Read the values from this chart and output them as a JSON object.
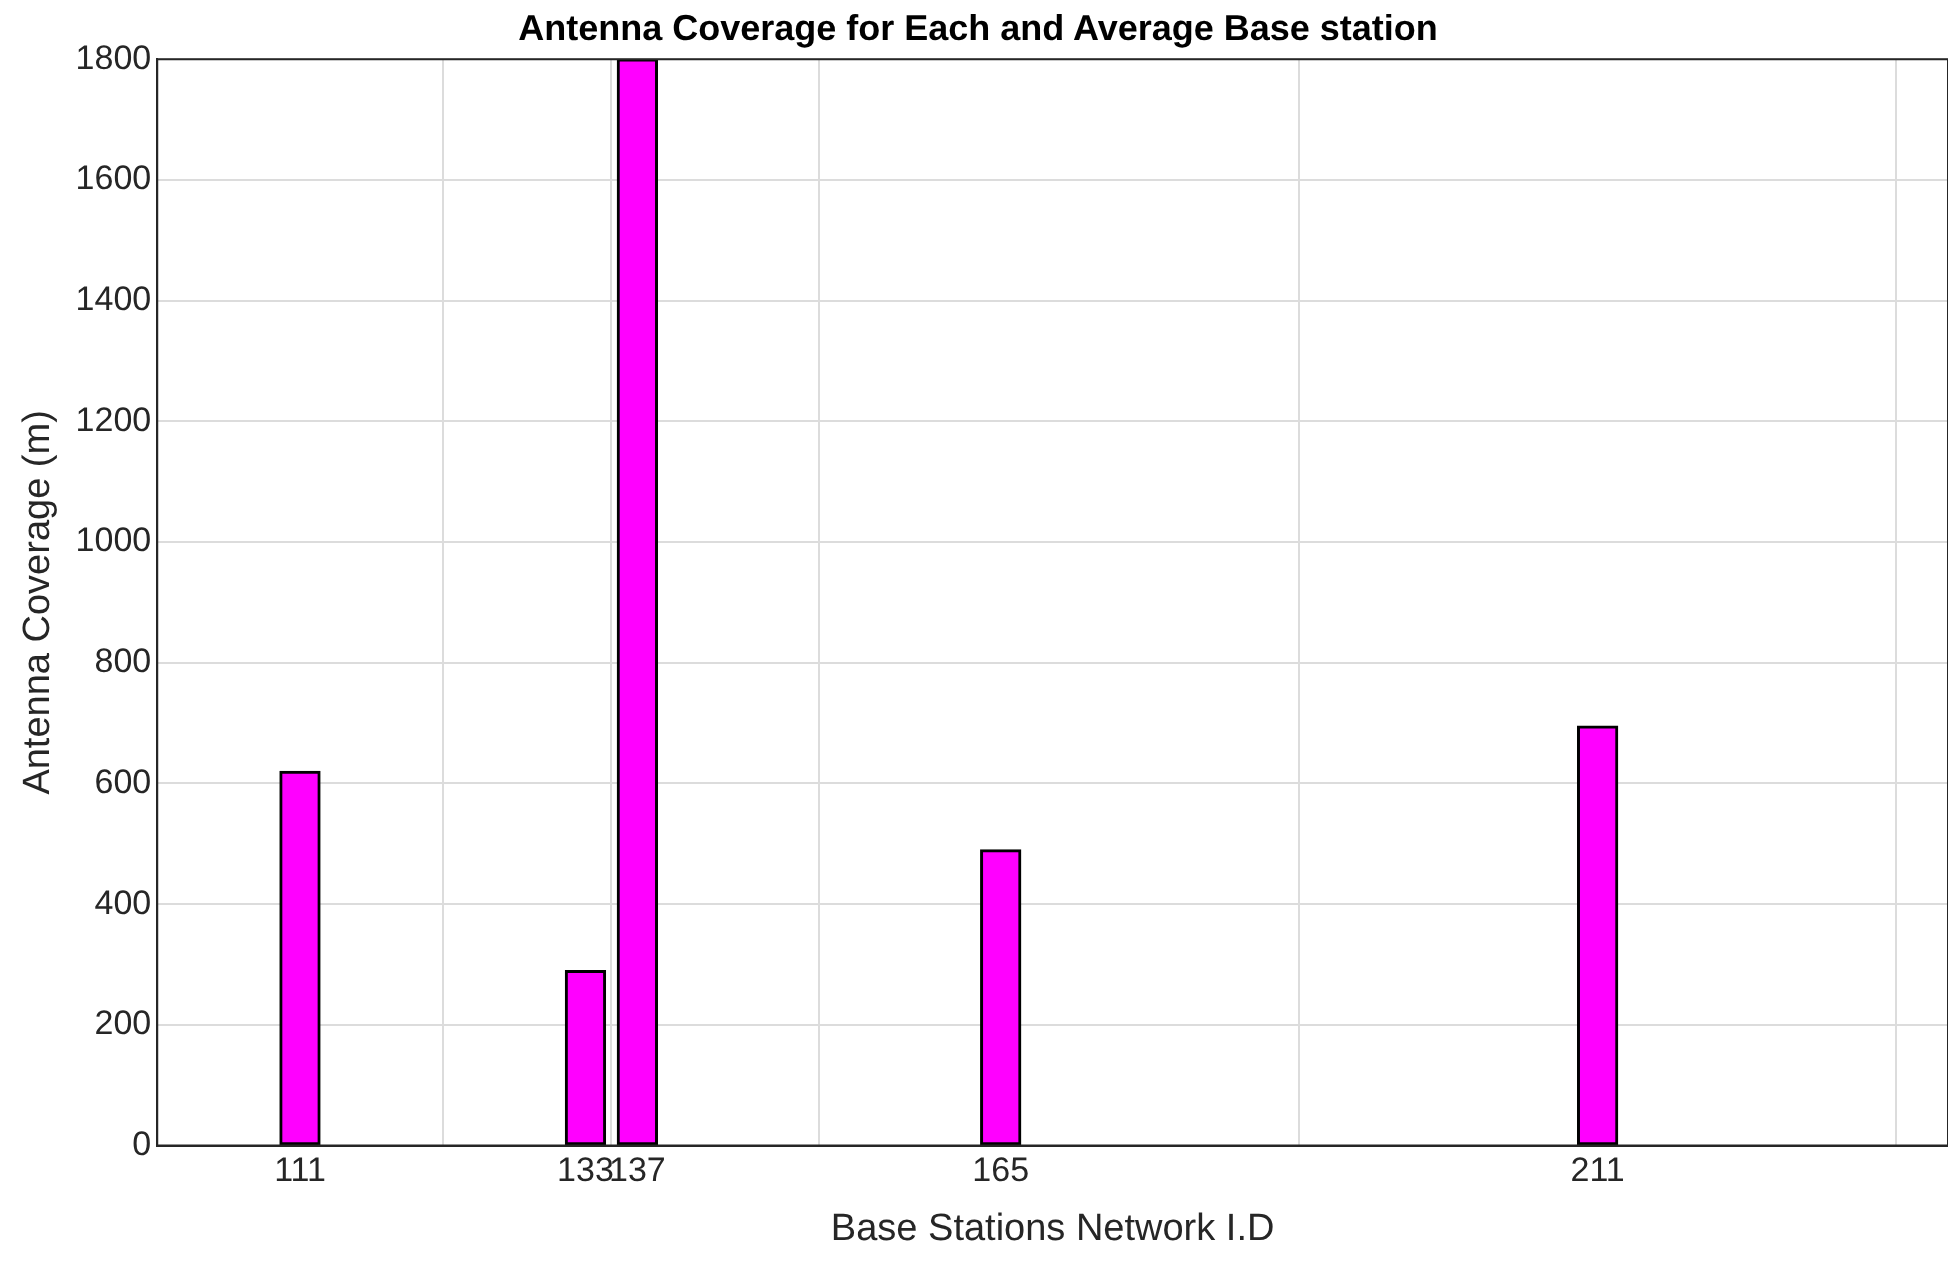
{
  "chart_data": {
    "type": "bar",
    "title": "Antenna Coverage for Each and Average Base station",
    "xlabel": "Base Stations Network I.D",
    "ylabel": "Antenna Coverage (m)",
    "x": [
      111,
      133,
      137,
      165,
      211
    ],
    "values": [
      620,
      290,
      1800,
      490,
      695
    ],
    "color": "#ff00ff",
    "xlim": [
      100,
      238
    ],
    "xticks": [
      111,
      133,
      137,
      165,
      211
    ],
    "ylim": [
      0,
      1800
    ],
    "yticks": [
      0,
      200,
      400,
      600,
      800,
      1000,
      1200,
      1400,
      1600,
      1800
    ],
    "grid": true
  }
}
